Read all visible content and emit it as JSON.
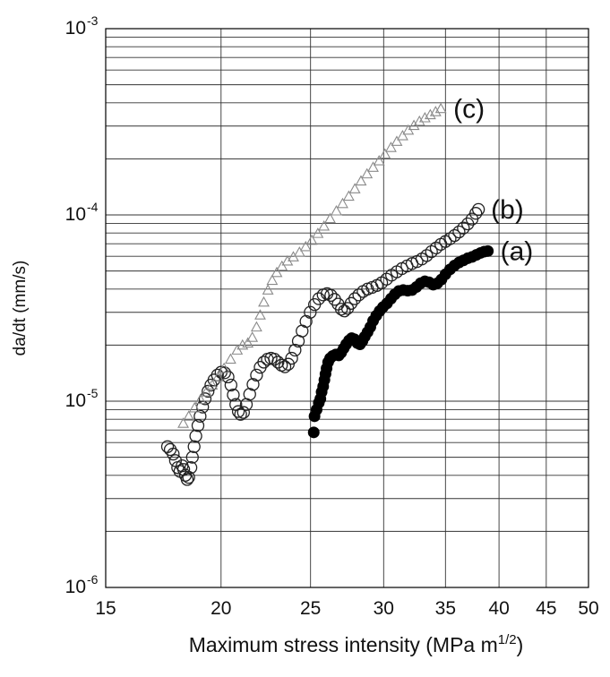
{
  "chart_data": {
    "type": "scatter",
    "title": "",
    "xlabel": "Maximum stress intensity (MPa m^1/2)",
    "ylabel": "da/dt (mm/s)",
    "x_scale": "log",
    "y_scale": "log",
    "xlim": [
      15,
      50
    ],
    "ylim": [
      1e-06,
      0.001
    ],
    "x_ticks": [
      15,
      20,
      25,
      30,
      35,
      40,
      45,
      50
    ],
    "x_tick_labels": [
      "15",
      "20",
      "25",
      "30",
      "35",
      "40",
      "45",
      "50"
    ],
    "y_ticks": [
      1e-06,
      1e-05,
      0.0001,
      0.001
    ],
    "y_tick_labels": [
      {
        "base": "10",
        "exp": "-6"
      },
      {
        "base": "10",
        "exp": "-5"
      },
      {
        "base": "10",
        "exp": "-4"
      },
      {
        "base": "10",
        "exp": "-3"
      }
    ],
    "grid": true,
    "legend": "none",
    "series": [
      {
        "label": "(a)",
        "marker": "filled-circle",
        "color": "#000000",
        "points": [
          [
            25.2,
            6.8e-06
          ],
          [
            25.25,
            8.3e-06
          ],
          [
            25.38,
            9e-06
          ],
          [
            25.52,
            9.8e-06
          ],
          [
            25.62,
            1.03e-05
          ],
          [
            25.7,
            1.12e-05
          ],
          [
            25.8,
            1.2e-05
          ],
          [
            25.88,
            1.3e-05
          ],
          [
            25.95,
            1.4e-05
          ],
          [
            26.02,
            1.5e-05
          ],
          [
            26.12,
            1.62e-05
          ],
          [
            26.25,
            1.7e-05
          ],
          [
            26.42,
            1.75e-05
          ],
          [
            26.62,
            1.78e-05
          ],
          [
            26.82,
            1.76e-05
          ],
          [
            26.98,
            1.82e-05
          ],
          [
            27.15,
            1.92e-05
          ],
          [
            27.32,
            2.02e-05
          ],
          [
            27.52,
            2.12e-05
          ],
          [
            27.7,
            2.18e-05
          ],
          [
            27.9,
            2.15e-05
          ],
          [
            28.1,
            2.05e-05
          ],
          [
            28.28,
            2.02e-05
          ],
          [
            28.45,
            2.1e-05
          ],
          [
            28.62,
            2.22e-05
          ],
          [
            28.82,
            2.35e-05
          ],
          [
            29.02,
            2.5e-05
          ],
          [
            29.22,
            2.7e-05
          ],
          [
            29.45,
            2.88e-05
          ],
          [
            29.7,
            3.05e-05
          ],
          [
            29.95,
            3.2e-05
          ],
          [
            30.25,
            3.35e-05
          ],
          [
            30.55,
            3.55e-05
          ],
          [
            30.85,
            3.75e-05
          ],
          [
            31.15,
            3.9e-05
          ],
          [
            31.5,
            3.95e-05
          ],
          [
            31.85,
            3.92e-05
          ],
          [
            32.2,
            3.95e-05
          ],
          [
            32.55,
            4.1e-05
          ],
          [
            32.9,
            4.3e-05
          ],
          [
            33.25,
            4.4e-05
          ],
          [
            33.6,
            4.35e-05
          ],
          [
            33.95,
            4.22e-05
          ],
          [
            34.3,
            4.3e-05
          ],
          [
            34.65,
            4.5e-05
          ],
          [
            35.0,
            4.8e-05
          ],
          [
            35.4,
            5.1e-05
          ],
          [
            35.8,
            5.35e-05
          ],
          [
            36.2,
            5.55e-05
          ],
          [
            36.6,
            5.7e-05
          ],
          [
            37.0,
            5.85e-05
          ],
          [
            37.4,
            5.95e-05
          ],
          [
            37.8,
            6.1e-05
          ],
          [
            38.2,
            6.25e-05
          ],
          [
            38.55,
            6.35e-05
          ],
          [
            38.9,
            6.4e-05
          ]
        ]
      },
      {
        "label": "(b)",
        "marker": "open-circle",
        "color": "#222222",
        "points": [
          [
            17.5,
            5.7e-06
          ],
          [
            17.62,
            5.5e-06
          ],
          [
            17.75,
            5.2e-06
          ],
          [
            17.85,
            4.8e-06
          ],
          [
            17.95,
            4.4e-06
          ],
          [
            18.05,
            4.2e-06
          ],
          [
            18.15,
            4.5e-06
          ],
          [
            18.22,
            4.3e-06
          ],
          [
            18.3,
            4e-06
          ],
          [
            18.38,
            3.8e-06
          ],
          [
            18.45,
            3.9e-06
          ],
          [
            18.55,
            4.4e-06
          ],
          [
            18.62,
            5e-06
          ],
          [
            18.7,
            5.7e-06
          ],
          [
            18.78,
            6.5e-06
          ],
          [
            18.88,
            7.4e-06
          ],
          [
            18.98,
            8.3e-06
          ],
          [
            19.1,
            9.3e-06
          ],
          [
            19.22,
            1.03e-05
          ],
          [
            19.36,
            1.13e-05
          ],
          [
            19.5,
            1.22e-05
          ],
          [
            19.65,
            1.3e-05
          ],
          [
            19.82,
            1.38e-05
          ],
          [
            20.0,
            1.43e-05
          ],
          [
            20.18,
            1.42e-05
          ],
          [
            20.35,
            1.35e-05
          ],
          [
            20.5,
            1.22e-05
          ],
          [
            20.62,
            1.08e-05
          ],
          [
            20.75,
            9.6e-06
          ],
          [
            20.88,
            8.8e-06
          ],
          [
            21.0,
            8.5e-06
          ],
          [
            21.15,
            8.7e-06
          ],
          [
            21.3,
            9.6e-06
          ],
          [
            21.48,
            1.09e-05
          ],
          [
            21.66,
            1.23e-05
          ],
          [
            21.85,
            1.38e-05
          ],
          [
            22.05,
            1.52e-05
          ],
          [
            22.25,
            1.62e-05
          ],
          [
            22.45,
            1.68e-05
          ],
          [
            22.65,
            1.7e-05
          ],
          [
            22.85,
            1.68e-05
          ],
          [
            23.05,
            1.62e-05
          ],
          [
            23.25,
            1.56e-05
          ],
          [
            23.45,
            1.53e-05
          ],
          [
            23.65,
            1.58e-05
          ],
          [
            23.85,
            1.7e-05
          ],
          [
            24.05,
            1.88e-05
          ],
          [
            24.25,
            2.1e-05
          ],
          [
            24.48,
            2.38e-05
          ],
          [
            24.72,
            2.68e-05
          ],
          [
            24.98,
            3e-05
          ],
          [
            25.25,
            3.3e-05
          ],
          [
            25.52,
            3.55e-05
          ],
          [
            25.8,
            3.72e-05
          ],
          [
            26.05,
            3.78e-05
          ],
          [
            26.3,
            3.7e-05
          ],
          [
            26.55,
            3.52e-05
          ],
          [
            26.78,
            3.32e-05
          ],
          [
            27.0,
            3.12e-05
          ],
          [
            27.2,
            3.05e-05
          ],
          [
            27.42,
            3.15e-05
          ],
          [
            27.66,
            3.35e-05
          ],
          [
            27.92,
            3.55e-05
          ],
          [
            28.2,
            3.72e-05
          ],
          [
            28.5,
            3.88e-05
          ],
          [
            28.82,
            4e-05
          ],
          [
            29.15,
            4.08e-05
          ],
          [
            29.5,
            4.18e-05
          ],
          [
            29.85,
            4.32e-05
          ],
          [
            30.22,
            4.52e-05
          ],
          [
            30.6,
            4.75e-05
          ],
          [
            31.0,
            4.95e-05
          ],
          [
            31.4,
            5.15e-05
          ],
          [
            31.8,
            5.32e-05
          ],
          [
            32.2,
            5.48e-05
          ],
          [
            32.6,
            5.62e-05
          ],
          [
            33.0,
            5.8e-05
          ],
          [
            33.4,
            6.05e-05
          ],
          [
            33.8,
            6.35e-05
          ],
          [
            34.2,
            6.65e-05
          ],
          [
            34.6,
            6.95e-05
          ],
          [
            35.0,
            7.2e-05
          ],
          [
            35.4,
            7.45e-05
          ],
          [
            35.8,
            7.75e-05
          ],
          [
            36.2,
            8.1e-05
          ],
          [
            36.6,
            8.5e-05
          ],
          [
            37.0,
            8.95e-05
          ],
          [
            37.4,
            9.5e-05
          ],
          [
            37.75,
            0.000102
          ],
          [
            38.0,
            0.000107
          ]
        ]
      },
      {
        "label": "(c)",
        "marker": "open-triangle",
        "color": "#8a8a8a",
        "points": [
          [
            18.2,
            7.6e-06
          ],
          [
            18.45,
            8.3e-06
          ],
          [
            18.72,
            9.2e-06
          ],
          [
            19.0,
            1.02e-05
          ],
          [
            19.28,
            1.12e-05
          ],
          [
            19.56,
            1.22e-05
          ],
          [
            19.85,
            1.35e-05
          ],
          [
            20.15,
            1.5e-05
          ],
          [
            20.48,
            1.68e-05
          ],
          [
            20.82,
            1.88e-05
          ],
          [
            21.1,
            2e-05
          ],
          [
            21.38,
            2.05e-05
          ],
          [
            21.62,
            2.2e-05
          ],
          [
            21.85,
            2.5e-05
          ],
          [
            22.05,
            2.9e-05
          ],
          [
            22.25,
            3.4e-05
          ],
          [
            22.48,
            3.95e-05
          ],
          [
            22.72,
            4.45e-05
          ],
          [
            22.98,
            4.9e-05
          ],
          [
            23.28,
            5.3e-05
          ],
          [
            23.6,
            5.65e-05
          ],
          [
            23.95,
            5.95e-05
          ],
          [
            24.32,
            6.3e-05
          ],
          [
            24.7,
            6.75e-05
          ],
          [
            25.08,
            7.3e-05
          ],
          [
            25.46,
            7.95e-05
          ],
          [
            25.85,
            8.7e-05
          ],
          [
            26.25,
            9.55e-05
          ],
          [
            26.66,
            0.000105
          ],
          [
            27.08,
            0.000115
          ],
          [
            27.5,
            0.000126
          ],
          [
            27.92,
            0.000138
          ],
          [
            28.35,
            0.000152
          ],
          [
            28.78,
            0.000166
          ],
          [
            29.22,
            0.00018
          ],
          [
            29.66,
            0.000195
          ],
          [
            30.1,
            0.000212
          ],
          [
            30.55,
            0.00023
          ],
          [
            31.0,
            0.000248
          ],
          [
            31.45,
            0.000266
          ],
          [
            31.9,
            0.000285
          ],
          [
            32.35,
            0.000302
          ],
          [
            32.8,
            0.000318
          ],
          [
            33.25,
            0.000332
          ],
          [
            33.7,
            0.000345
          ],
          [
            34.15,
            0.000358
          ],
          [
            34.6,
            0.000372
          ]
        ]
      }
    ]
  }
}
